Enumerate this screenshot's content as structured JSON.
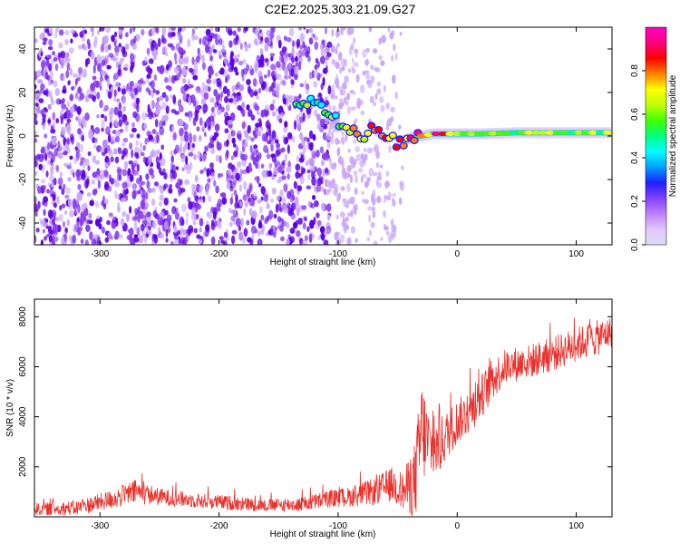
{
  "title": "C2E2.2025.303.21.09.G27",
  "colors": {
    "line": "#e8312c",
    "ridge_outline": "#1a1aff",
    "speckle_dark": "#5b00e6",
    "speckle_mid": "#8a3df0",
    "speckle_light": "#c9a6fa",
    "background": "#ffffff",
    "frame": "#000000"
  },
  "colorbar_colors": [
    "#dcdcf4",
    "#e0c8ff",
    "#c080ff",
    "#8040ff",
    "#2020ff",
    "#00a0ff",
    "#00ffff",
    "#00ff80",
    "#40ff00",
    "#c0ff00",
    "#ffff00",
    "#ff8000",
    "#ff0000",
    "#ff0080",
    "#ff00c0"
  ],
  "chart_data": [
    {
      "type": "heatmap",
      "title": "C2E2.2025.303.21.09.G27",
      "xlabel": "Height of straight line (km)",
      "ylabel": "Frequency (Hz)",
      "xlim": [
        -355,
        130
      ],
      "ylim": [
        -50,
        50
      ],
      "x_ticks": [
        -300,
        -200,
        -100,
        0,
        100
      ],
      "x_tick_labels": [
        "-300",
        "-200",
        "-100",
        "0",
        "100"
      ],
      "y_ticks": [
        40,
        20,
        0,
        -20,
        -40
      ],
      "y_tick_labels": [
        "40",
        "20",
        "0",
        "-20",
        "-40"
      ],
      "colorbar": {
        "label": "Normalized spectral amplitude",
        "range": [
          0,
          1
        ],
        "ticks": [
          0.0,
          0.2,
          0.4,
          0.6,
          0.8
        ],
        "tick_labels": [
          "0.0",
          "0.2",
          "0.4",
          "0.6",
          "0.8"
        ]
      },
      "noise_region_x": [
        -355,
        -45
      ],
      "signal_ridge": {
        "x": [
          -130,
          -110,
          -95,
          -80,
          -70,
          -60,
          -50,
          -40,
          -30,
          -20,
          -10,
          0,
          20,
          50,
          80,
          100,
          130
        ],
        "y": [
          16,
          12,
          3,
          1,
          2,
          -2,
          -3,
          -1,
          0,
          1,
          1,
          1,
          1,
          1.5,
          1.5,
          1.5,
          1.5
        ],
        "amplitude": [
          0.22,
          0.22,
          0.35,
          0.45,
          0.5,
          0.55,
          0.5,
          0.55,
          0.65,
          0.75,
          0.6,
          0.5,
          0.45,
          0.45,
          0.5,
          0.5,
          0.5
        ]
      }
    },
    {
      "type": "line",
      "xlabel": "Height of straight line (km)",
      "ylabel": "SNR (10 * v/v)",
      "xlim": [
        -355,
        130
      ],
      "ylim": [
        0,
        8700
      ],
      "x_ticks": [
        -300,
        -200,
        -100,
        0,
        100
      ],
      "x_tick_labels": [
        "-300",
        "-200",
        "-100",
        "0",
        "100"
      ],
      "y_ticks": [
        2000,
        4000,
        6000,
        8000
      ],
      "y_tick_labels": [
        "2000",
        "4000",
        "6000",
        "8000"
      ],
      "series": [
        {
          "name": "SNR",
          "envelope_x": [
            -355,
            -320,
            -290,
            -270,
            -250,
            -220,
            -190,
            -160,
            -130,
            -110,
            -90,
            -70,
            -55,
            -45,
            -35,
            -30,
            -25,
            -20,
            -15,
            -10,
            0,
            10,
            20,
            30,
            40,
            60,
            80,
            100,
            120,
            130
          ],
          "mean_y": [
            300,
            350,
            700,
            1000,
            800,
            650,
            550,
            450,
            500,
            700,
            800,
            1000,
            1300,
            1000,
            1500,
            3500,
            3000,
            2600,
            2800,
            3200,
            3800,
            4200,
            4800,
            5500,
            6000,
            6200,
            6500,
            6900,
            7200,
            7400
          ],
          "spread_y": [
            250,
            300,
            400,
            500,
            350,
            300,
            300,
            250,
            300,
            350,
            400,
            550,
            700,
            800,
            1600,
            2200,
            1600,
            1000,
            1200,
            1000,
            900,
            900,
            900,
            850,
            700,
            700,
            700,
            700,
            700,
            600
          ]
        }
      ]
    }
  ]
}
